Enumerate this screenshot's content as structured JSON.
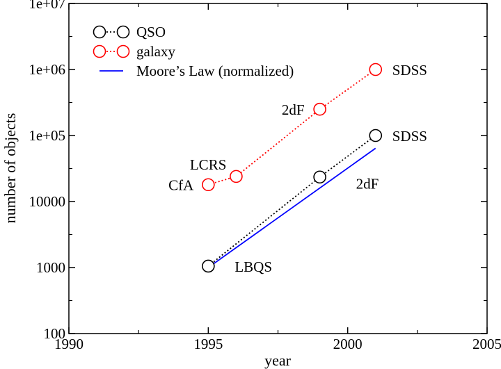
{
  "chart_data": {
    "type": "line",
    "x_scale": "linear",
    "y_scale": "log",
    "xlabel": "year",
    "ylabel": "number of objects",
    "xlim": [
      1990,
      2005
    ],
    "ylim": [
      100,
      10000000
    ],
    "x_ticks": [
      1990,
      1995,
      2000,
      2005
    ],
    "y_ticks": [
      {
        "value": 100,
        "label": "100"
      },
      {
        "value": 1000,
        "label": "1000"
      },
      {
        "value": 10000,
        "label": "10000"
      },
      {
        "value": 100000,
        "label": "1e+05"
      },
      {
        "value": 1000000,
        "label": "1e+06"
      },
      {
        "value": 10000000,
        "label": "1e+07"
      }
    ],
    "legend_position": "top-left",
    "series": [
      {
        "name": "QSO",
        "color": "#000000",
        "style": "dotted-circles",
        "points": [
          {
            "x": 1995,
            "y": 1050,
            "label": "LBQS"
          },
          {
            "x": 1999,
            "y": 23500,
            "label": "2dF"
          },
          {
            "x": 2001,
            "y": 100000,
            "label": "SDSS"
          }
        ]
      },
      {
        "name": "galaxy",
        "color": "#ff0000",
        "style": "dotted-circles",
        "points": [
          {
            "x": 1995,
            "y": 18000,
            "label": "CfA"
          },
          {
            "x": 1996,
            "y": 24000,
            "label": "LCRS"
          },
          {
            "x": 1999,
            "y": 250000,
            "label": "2dF"
          },
          {
            "x": 2001,
            "y": 1000000,
            "label": "SDSS"
          }
        ]
      },
      {
        "name": "Moore’s Law (normalized)",
        "color": "#0000ff",
        "style": "solid",
        "points": [
          {
            "x": 1995,
            "y": 1000
          },
          {
            "x": 2001,
            "y": 64000
          }
        ]
      }
    ]
  }
}
